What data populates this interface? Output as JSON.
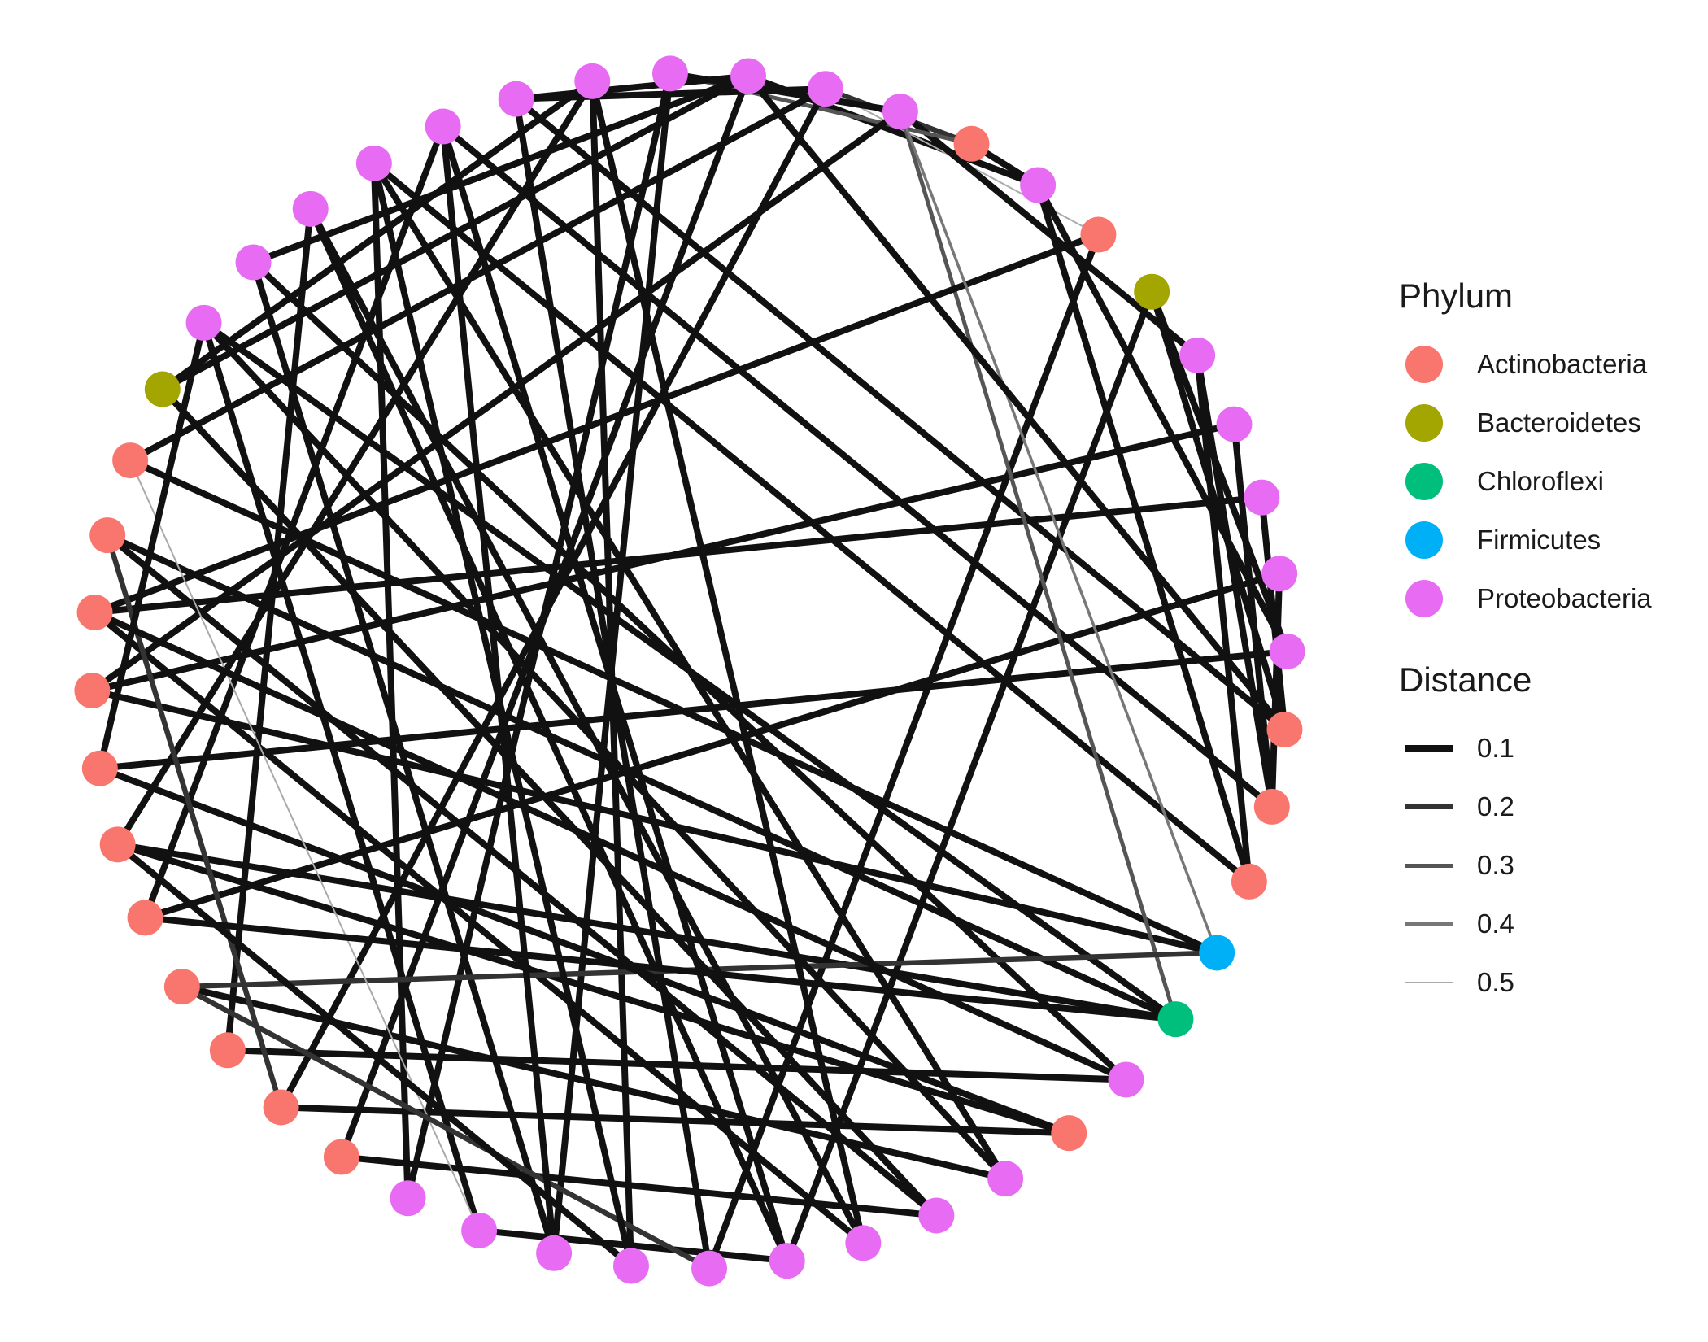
{
  "legend": {
    "phylum_title": "Phylum",
    "distance_title": "Distance",
    "phyla": [
      {
        "label": "Actinobacteria",
        "color": "#F8766D"
      },
      {
        "label": "Bacteroidetes",
        "color": "#A3A500"
      },
      {
        "label": "Chloroflexi",
        "color": "#00BF7D"
      },
      {
        "label": "Firmicutes",
        "color": "#00B0F6"
      },
      {
        "label": "Proteobacteria",
        "color": "#E76BF3"
      }
    ],
    "distances": [
      {
        "label": "0.1",
        "value": 0.1,
        "color": "#111111"
      },
      {
        "label": "0.2",
        "value": 0.2,
        "color": "#333333"
      },
      {
        "label": "0.3",
        "value": 0.3,
        "color": "#555555"
      },
      {
        "label": "0.4",
        "value": 0.4,
        "color": "#777777"
      },
      {
        "label": "0.5",
        "value": 0.5,
        "color": "#aaaaaa"
      }
    ]
  },
  "network": {
    "layout": "circle",
    "node_phyla": [
      "Proteobacteria",
      "Proteobacteria",
      "Proteobacteria",
      "Actinobacteria",
      "Proteobacteria",
      "Actinobacteria",
      "Bacteroidetes",
      "Proteobacteria",
      "Proteobacteria",
      "Proteobacteria",
      "Proteobacteria",
      "Proteobacteria",
      "Actinobacteria",
      "Actinobacteria",
      "Actinobacteria",
      "Firmicutes",
      "Chloroflexi",
      "Proteobacteria",
      "Actinobacteria",
      "Proteobacteria",
      "Proteobacteria",
      "Proteobacteria",
      "Proteobacteria",
      "Proteobacteria",
      "Proteobacteria",
      "Proteobacteria",
      "Proteobacteria",
      "Proteobacteria",
      "Actinobacteria",
      "Actinobacteria",
      "Actinobacteria",
      "Actinobacteria",
      "Actinobacteria",
      "Actinobacteria",
      "Actinobacteria",
      "Actinobacteria",
      "Actinobacteria",
      "Actinobacteria",
      "Actinobacteria",
      "Bacteroidetes",
      "Proteobacteria",
      "Proteobacteria",
      "Proteobacteria",
      "Proteobacteria",
      "Proteobacteria",
      "Proteobacteria",
      "Proteobacteria",
      "Proteobacteria"
    ],
    "edges": [
      {
        "from": 0,
        "to": 4,
        "distance": 0.1
      },
      {
        "from": 1,
        "to": 3,
        "distance": 0.2
      },
      {
        "from": 1,
        "to": 5,
        "distance": 0.5
      },
      {
        "from": 2,
        "to": 7,
        "distance": 0.1
      },
      {
        "from": 3,
        "to": 47,
        "distance": 0.3
      },
      {
        "from": 4,
        "to": 14,
        "distance": 0.1
      },
      {
        "from": 5,
        "to": 23,
        "distance": 0.1
      },
      {
        "from": 6,
        "to": 12,
        "distance": 0.1
      },
      {
        "from": 6,
        "to": 22,
        "distance": 0.1
      },
      {
        "from": 7,
        "to": 14,
        "distance": 0.1
      },
      {
        "from": 8,
        "to": 13,
        "distance": 0.1
      },
      {
        "from": 8,
        "to": 35,
        "distance": 0.1
      },
      {
        "from": 9,
        "to": 36,
        "distance": 0.1
      },
      {
        "from": 10,
        "to": 32,
        "distance": 0.1
      },
      {
        "from": 11,
        "to": 34,
        "distance": 0.1
      },
      {
        "from": 11,
        "to": 4,
        "distance": 0.1
      },
      {
        "from": 12,
        "to": 45,
        "distance": 0.1
      },
      {
        "from": 13,
        "to": 44,
        "distance": 0.1
      },
      {
        "from": 14,
        "to": 43,
        "distance": 0.1
      },
      {
        "from": 15,
        "to": 35,
        "distance": 0.1
      },
      {
        "from": 15,
        "to": 38,
        "distance": 0.1
      },
      {
        "from": 16,
        "to": 37,
        "distance": 0.1
      },
      {
        "from": 16,
        "to": 40,
        "distance": 0.1
      },
      {
        "from": 16,
        "to": 33,
        "distance": 0.1
      },
      {
        "from": 16,
        "to": 2,
        "distance": 0.3
      },
      {
        "from": 17,
        "to": 30,
        "distance": 0.1
      },
      {
        "from": 17,
        "to": 41,
        "distance": 0.1
      },
      {
        "from": 18,
        "to": 29,
        "distance": 0.1
      },
      {
        "from": 18,
        "to": 33,
        "distance": 0.1
      },
      {
        "from": 19,
        "to": 31,
        "distance": 0.1
      },
      {
        "from": 20,
        "to": 28,
        "distance": 0.1
      },
      {
        "from": 20,
        "to": 39,
        "distance": 0.1
      },
      {
        "from": 21,
        "to": 36,
        "distance": 0.1
      },
      {
        "from": 22,
        "to": 26,
        "distance": 0.1
      },
      {
        "from": 22,
        "to": 42,
        "distance": 0.1
      },
      {
        "from": 23,
        "to": 45,
        "distance": 0.1
      },
      {
        "from": 24,
        "to": 46,
        "distance": 0.1
      },
      {
        "from": 25,
        "to": 41,
        "distance": 0.1
      },
      {
        "from": 25,
        "to": 47,
        "distance": 0.1
      },
      {
        "from": 26,
        "to": 40,
        "distance": 0.1
      },
      {
        "from": 27,
        "to": 47,
        "distance": 0.1
      },
      {
        "from": 27,
        "to": 43,
        "distance": 0.1
      },
      {
        "from": 28,
        "to": 0,
        "distance": 0.1
      },
      {
        "from": 29,
        "to": 1,
        "distance": 0.1
      },
      {
        "from": 30,
        "to": 42,
        "distance": 0.1
      },
      {
        "from": 31,
        "to": 15,
        "distance": 0.2
      },
      {
        "from": 32,
        "to": 44,
        "distance": 0.1
      },
      {
        "from": 33,
        "to": 46,
        "distance": 0.1
      },
      {
        "from": 34,
        "to": 18,
        "distance": 0.1
      },
      {
        "from": 35,
        "to": 2,
        "distance": 0.1
      },
      {
        "from": 36,
        "to": 5,
        "distance": 0.1
      },
      {
        "from": 37,
        "to": 20,
        "distance": 0.1
      },
      {
        "from": 38,
        "to": 1,
        "distance": 0.1
      },
      {
        "from": 39,
        "to": 0,
        "distance": 0.1
      },
      {
        "from": 39,
        "to": 46,
        "distance": 0.1
      },
      {
        "from": 40,
        "to": 19,
        "distance": 0.1
      },
      {
        "from": 41,
        "to": 0,
        "distance": 0.1
      },
      {
        "from": 42,
        "to": 21,
        "distance": 0.1
      },
      {
        "from": 43,
        "to": 19,
        "distance": 0.1
      },
      {
        "from": 44,
        "to": 22,
        "distance": 0.1
      },
      {
        "from": 45,
        "to": 1,
        "distance": 0.1
      },
      {
        "from": 46,
        "to": 21,
        "distance": 0.1
      },
      {
        "from": 47,
        "to": 2,
        "distance": 0.1
      },
      {
        "from": 2,
        "to": 15,
        "distance": 0.4
      },
      {
        "from": 38,
        "to": 26,
        "distance": 0.5
      },
      {
        "from": 31,
        "to": 23,
        "distance": 0.2
      },
      {
        "from": 37,
        "to": 29,
        "distance": 0.2
      },
      {
        "from": 9,
        "to": 12,
        "distance": 0.1
      },
      {
        "from": 10,
        "to": 13,
        "distance": 0.1
      },
      {
        "from": 0,
        "to": 12,
        "distance": 0.1
      },
      {
        "from": 3,
        "to": 4,
        "distance": 0.1
      },
      {
        "from": 45,
        "to": 0,
        "distance": 0.1
      },
      {
        "from": 16,
        "to": 32,
        "distance": 0.1
      },
      {
        "from": 24,
        "to": 33,
        "distance": 0.1
      },
      {
        "from": 17,
        "to": 36,
        "distance": 0.1
      },
      {
        "from": 6,
        "to": 11,
        "distance": 0.1
      },
      {
        "from": 7,
        "to": 13,
        "distance": 0.1
      },
      {
        "from": 39,
        "to": 20,
        "distance": 0.1
      },
      {
        "from": 44,
        "to": 25,
        "distance": 0.1
      },
      {
        "from": 43,
        "to": 24,
        "distance": 0.1
      },
      {
        "from": 40,
        "to": 34,
        "distance": 0.1
      }
    ]
  }
}
